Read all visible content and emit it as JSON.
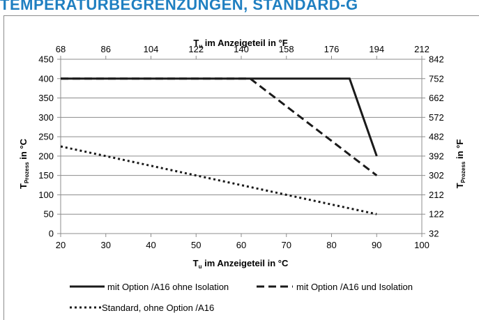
{
  "heading": "TEMPERATURBEGRENZUNGEN, STANDARD-G",
  "chart_data": {
    "type": "line",
    "top_axis": {
      "label_main": "T",
      "label_sub": "u",
      "label_rest": " im Anzeigeteil in °F",
      "ticks": [
        "68",
        "86",
        "104",
        "122",
        "140",
        "158",
        "176",
        "194",
        "212"
      ]
    },
    "bottom_axis": {
      "label_main": "T",
      "label_sub": "u",
      "label_rest": " im Anzeigeteil in °C",
      "ticks": [
        "20",
        "30",
        "40",
        "50",
        "60",
        "70",
        "80",
        "90",
        "100"
      ],
      "range": [
        20,
        100
      ]
    },
    "left_axis": {
      "label_main": "T",
      "label_sub": "Prozess",
      "label_rest": " in °C",
      "ticks": [
        "0",
        "50",
        "100",
        "150",
        "200",
        "250",
        "300",
        "350",
        "400",
        "450"
      ],
      "range": [
        0,
        450
      ]
    },
    "right_axis": {
      "label_main": "T",
      "label_sub": "Prozess",
      "label_rest": " in °F",
      "ticks": [
        "32",
        "122",
        "212",
        "302",
        "392",
        "482",
        "572",
        "662",
        "752",
        "842"
      ]
    },
    "grid": true,
    "legend_position": "bottom",
    "series": [
      {
        "name": "mit Option /A16 ohne Isolation",
        "style": "solid",
        "x": [
          20,
          84,
          90
        ],
        "y": [
          400,
          400,
          200
        ]
      },
      {
        "name": "mit Option /A16 und Isolation",
        "style": "dashed",
        "x": [
          20,
          62,
          90
        ],
        "y": [
          400,
          400,
          150
        ]
      },
      {
        "name": "Standard, ohne Option /A16",
        "style": "dotted",
        "x": [
          20,
          90
        ],
        "y": [
          225,
          50
        ]
      }
    ],
    "colors": {
      "lines": "#1a1a1a",
      "grid": "#8c8c8c",
      "heading": "#1f7fc1"
    }
  }
}
